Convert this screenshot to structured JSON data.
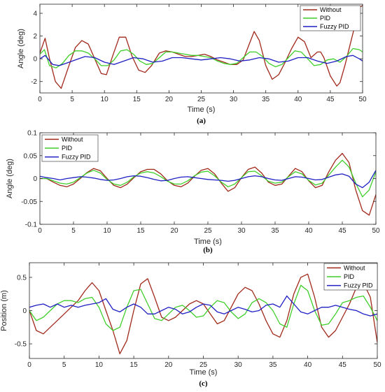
{
  "colors": {
    "without": "#a0291b",
    "pid": "#3fcf2a",
    "fuzzy": "#1f1fc4"
  },
  "chart_data": [
    {
      "type": "line",
      "panel_label": "(a)",
      "xlabel": "Time (s)",
      "ylabel": "Angle (deg)",
      "xlim": [
        0,
        50
      ],
      "ylim": [
        -3,
        4.8
      ],
      "xticks": [
        0,
        5,
        10,
        15,
        20,
        25,
        30,
        35,
        40,
        45,
        50
      ],
      "xtick_labels": [
        "0",
        "5",
        "10",
        "15",
        "20",
        "25",
        "30",
        "35",
        "40",
        "45",
        "50"
      ],
      "yticks": [
        -2,
        0,
        2,
        4
      ],
      "ytick_labels": [
        "-2",
        "0",
        "2",
        "4"
      ],
      "legend_position": "top-right",
      "series": [
        {
          "name": "Without",
          "color_key": "without",
          "x": [
            0,
            0.8,
            1.5,
            2.4,
            3.3,
            4.5,
            5.5,
            6.5,
            7.5,
            8.5,
            9.5,
            10.3,
            11.3,
            12.3,
            13.3,
            14.3,
            15.3,
            16.3,
            17.3,
            18.5,
            19.5,
            20.5,
            21.5,
            22.5,
            23.5,
            24.5,
            25.5,
            26.5,
            27.5,
            28.5,
            29.5,
            30.5,
            31.5,
            32.5,
            33.2,
            34,
            35,
            36,
            37,
            38,
            39,
            40,
            41,
            42,
            43,
            43.5,
            44,
            45,
            46,
            46.5,
            47.3,
            48,
            48.8,
            49.5,
            50
          ],
          "y": [
            0.5,
            1.8,
            0,
            -2,
            -2.6,
            -0.6,
            1,
            1.6,
            1.3,
            0,
            -1.3,
            -1.4,
            0.3,
            1.9,
            1.9,
            0.2,
            -1,
            -1.2,
            -0.6,
            0.5,
            0.7,
            0.6,
            0.4,
            0.2,
            0.2,
            0.3,
            0.4,
            0.2,
            -0.1,
            -0.3,
            -0.5,
            -0.5,
            -0.1,
            1.4,
            2.4,
            1.6,
            -0.6,
            -1.8,
            -1.4,
            -0.3,
            0.9,
            1.9,
            1.5,
            0.1,
            0.6,
            0.6,
            0.1,
            -1.5,
            -2.4,
            -2.1,
            -0.5,
            1.1,
            2.9,
            4.5,
            4.7
          ]
        },
        {
          "name": "PID",
          "color_key": "pid",
          "x": [
            0,
            0.7,
            1.5,
            2.5,
            3.5,
            4.5,
            5.5,
            6.5,
            7.5,
            8.5,
            9.5,
            10.5,
            11.5,
            12.5,
            13.5,
            14.5,
            15.5,
            16.5,
            17.5,
            18.5,
            19.5,
            20.5,
            21.5,
            22.5,
            23.5,
            24.5,
            25.5,
            26.5,
            27.5,
            28.5,
            29.5,
            30.5,
            31.5,
            32.5,
            33.5,
            34.5,
            35.5,
            36.5,
            37.5,
            38.5,
            39.5,
            40.5,
            41.5,
            42.5,
            43.5,
            44.5,
            45.5,
            46.5,
            47.5,
            48.5,
            49.5,
            50
          ],
          "y": [
            0.4,
            0.8,
            -0.6,
            -0.8,
            -0.4,
            0.3,
            0.7,
            0.7,
            0.5,
            0,
            -0.6,
            -0.6,
            -0.1,
            0.7,
            0.8,
            0.4,
            -0.2,
            -0.5,
            -0.4,
            0.1,
            0.6,
            0.6,
            0.5,
            0.4,
            0.3,
            0.3,
            0.2,
            0.1,
            -0.2,
            -0.4,
            -0.5,
            -0.4,
            0.1,
            0.6,
            0.6,
            0.2,
            -0.4,
            -0.7,
            -0.5,
            0.1,
            0.7,
            0.6,
            0,
            -0.6,
            -0.5,
            -0.1,
            0,
            -0.3,
            0.2,
            0.9,
            0.8,
            0.6
          ]
        },
        {
          "name": "Fuzzy PID",
          "color_key": "fuzzy",
          "x": [
            0,
            0.8,
            2,
            3,
            4,
            5.5,
            7,
            8.5,
            10,
            11.5,
            13,
            14.5,
            16,
            17.5,
            19,
            20.5,
            22,
            23.5,
            25,
            26.5,
            28,
            29.5,
            31,
            32.5,
            34,
            35.5,
            37,
            38.5,
            40,
            41.5,
            43,
            44.5,
            46,
            47.5,
            48.5,
            49.5,
            50
          ],
          "y": [
            0,
            0.3,
            -0.5,
            -0.6,
            -0.4,
            -0.1,
            0.2,
            0.1,
            -0.3,
            -0.5,
            -0.2,
            0.1,
            0,
            -0.3,
            -0.2,
            0.1,
            0.1,
            0,
            -0.1,
            0,
            0.1,
            0,
            -0.2,
            -0.1,
            0.1,
            0,
            -0.3,
            -0.2,
            0.1,
            0.1,
            -0.2,
            -0.4,
            -0.2,
            0.2,
            0.3,
            0,
            -0.2
          ]
        }
      ]
    },
    {
      "type": "line",
      "panel_label": "(b)",
      "xlabel": "Time (s)",
      "ylabel": "Angle (deg)",
      "xlim": [
        0,
        50
      ],
      "ylim": [
        -0.1,
        0.1
      ],
      "xticks": [
        0,
        5,
        10,
        15,
        20,
        25,
        30,
        35,
        40,
        45,
        50
      ],
      "xtick_labels": [
        "0",
        "5",
        "10",
        "15",
        "20",
        "25",
        "30",
        "35",
        "40",
        "45",
        "50"
      ],
      "yticks": [
        -0.1,
        -0.05,
        0,
        0.05,
        0.1
      ],
      "ytick_labels": [
        "-0.1",
        "-0.05",
        "0",
        "0.05",
        "0.1"
      ],
      "legend_position": "top-left",
      "series": [
        {
          "name": "Without",
          "color_key": "without",
          "x": [
            0,
            1,
            2,
            3,
            4,
            5,
            6,
            7,
            8,
            9,
            10,
            11,
            12,
            13,
            14,
            15,
            16,
            17,
            18,
            19,
            20,
            21,
            22,
            23,
            24,
            25,
            26,
            27,
            28,
            29,
            30,
            31,
            32,
            33,
            34,
            35,
            36,
            37,
            38,
            39,
            40,
            41,
            42,
            43,
            44,
            45,
            46,
            47,
            48,
            49,
            50
          ],
          "y": [
            0,
            0,
            -0.008,
            -0.015,
            -0.018,
            -0.012,
            0,
            0.013,
            0.022,
            0.017,
            0,
            -0.015,
            -0.02,
            -0.012,
            0.002,
            0.015,
            0.02,
            0.02,
            0.01,
            -0.005,
            -0.015,
            -0.018,
            -0.01,
            0.005,
            0.018,
            0.022,
            0.01,
            -0.01,
            -0.028,
            -0.02,
            0.002,
            0.02,
            0.025,
            0.012,
            -0.008,
            -0.015,
            -0.012,
            0.005,
            0.022,
            0.015,
            -0.005,
            -0.02,
            -0.015,
            0.015,
            0.04,
            0.055,
            0.035,
            -0.025,
            -0.07,
            -0.08,
            -0.035
          ]
        },
        {
          "name": "PID",
          "color_key": "pid",
          "x": [
            0,
            1,
            2,
            3,
            4,
            5,
            6,
            7,
            8,
            9,
            10,
            11,
            12,
            13,
            14,
            15,
            16,
            17,
            18,
            19,
            20,
            21,
            22,
            23,
            24,
            25,
            26,
            27,
            28,
            29,
            30,
            31,
            32,
            33,
            34,
            35,
            36,
            37,
            38,
            39,
            40,
            41,
            42,
            43,
            44,
            45,
            46,
            47,
            48,
            49,
            50
          ],
          "y": [
            0,
            0,
            -0.005,
            -0.01,
            -0.012,
            -0.008,
            0.002,
            0.012,
            0.018,
            0.012,
            -0.002,
            -0.012,
            -0.015,
            -0.008,
            0.004,
            0.012,
            0.015,
            0.012,
            0.004,
            -0.006,
            -0.012,
            -0.012,
            -0.005,
            0.006,
            0.014,
            0.016,
            0.006,
            -0.008,
            -0.018,
            -0.012,
            0.002,
            0.015,
            0.016,
            0.006,
            -0.006,
            -0.01,
            -0.008,
            0.004,
            0.015,
            0.01,
            -0.004,
            -0.014,
            -0.01,
            0.008,
            0.025,
            0.04,
            0.025,
            -0.01,
            -0.04,
            -0.025,
            0.015
          ]
        },
        {
          "name": "Fuzzy PID",
          "color_key": "fuzzy",
          "x": [
            0,
            1,
            2,
            3,
            4,
            5,
            6,
            7,
            8,
            9,
            10,
            11,
            12,
            13,
            14,
            15,
            16,
            17,
            18,
            19,
            20,
            21,
            22,
            23,
            24,
            25,
            26,
            27,
            28,
            29,
            30,
            31,
            32,
            33,
            34,
            35,
            36,
            37,
            38,
            39,
            40,
            41,
            42,
            43,
            44,
            45,
            46,
            47,
            48,
            49,
            50
          ],
          "y": [
            0.005,
            0.002,
            0,
            -0.003,
            0,
            0.002,
            0.004,
            0.003,
            0.001,
            -0.002,
            -0.004,
            -0.003,
            0,
            0.004,
            0.006,
            0.005,
            0.002,
            -0.002,
            -0.005,
            -0.004,
            0,
            0.003,
            0.004,
            0.002,
            0,
            -0.002,
            -0.003,
            -0.004,
            -0.006,
            -0.004,
            0,
            0.004,
            0.006,
            0.004,
            0,
            -0.003,
            -0.004,
            0,
            0.004,
            0.003,
            0,
            -0.003,
            -0.002,
            0.003,
            0.008,
            0.01,
            0.005,
            -0.012,
            -0.02,
            -0.008,
            0.018
          ]
        }
      ]
    },
    {
      "type": "line",
      "panel_label": "(c)",
      "xlabel": "Time (s)",
      "ylabel": "Position (m)",
      "xlim": [
        0,
        50
      ],
      "ylim": [
        -0.72,
        0.72
      ],
      "xticks": [
        0,
        5,
        10,
        15,
        20,
        25,
        30,
        35,
        40,
        45,
        50
      ],
      "xtick_labels": [
        "0",
        "5",
        "10",
        "15",
        "20",
        "25",
        "30",
        "35",
        "40",
        "45",
        "50"
      ],
      "yticks": [
        -0.5,
        0,
        0.5
      ],
      "ytick_labels": [
        "-0.5",
        "0",
        "0.5"
      ],
      "legend_position": "top-right",
      "series": [
        {
          "name": "Without",
          "color_key": "without",
          "x": [
            0,
            1,
            2,
            3,
            4,
            5,
            6,
            7,
            8,
            9,
            10,
            11,
            12,
            13,
            14,
            15,
            16,
            17,
            18,
            19,
            20,
            21,
            22,
            23,
            24,
            25,
            26,
            27,
            28,
            29,
            30,
            31,
            32,
            33,
            34,
            35,
            36,
            37,
            38,
            39,
            40,
            41,
            42,
            43,
            44,
            45,
            46,
            47,
            48,
            49,
            50
          ],
          "y": [
            0,
            -0.3,
            -0.35,
            -0.25,
            -0.15,
            -0.05,
            0.05,
            0.15,
            0.3,
            0.42,
            0.3,
            0,
            -0.3,
            -0.65,
            -0.45,
            0,
            0.4,
            0.48,
            0.2,
            -0.1,
            -0.15,
            -0.1,
            0,
            0.1,
            0.15,
            0.1,
            -0.05,
            -0.2,
            -0.15,
            0.05,
            0.25,
            0.35,
            0.3,
            0.1,
            -0.15,
            -0.35,
            -0.4,
            -0.15,
            0.25,
            0.5,
            0.55,
            0.2,
            -0.25,
            -0.4,
            -0.3,
            -0.1,
            0.1,
            0.35,
            0.42,
            0.2,
            -0.48
          ]
        },
        {
          "name": "PID",
          "color_key": "pid",
          "x": [
            0,
            1,
            2,
            3,
            4,
            5,
            6,
            7,
            8,
            9,
            10,
            11,
            12,
            13,
            14,
            15,
            16,
            17,
            18,
            19,
            20,
            21,
            22,
            23,
            24,
            25,
            26,
            27,
            28,
            29,
            30,
            31,
            32,
            33,
            34,
            35,
            36,
            37,
            38,
            39,
            40,
            41,
            42,
            43,
            44,
            45,
            46,
            47,
            48,
            49,
            50
          ],
          "y": [
            0,
            -0.15,
            -0.1,
            0,
            0.1,
            0.15,
            0.15,
            0.12,
            0.18,
            0.2,
            0.05,
            -0.2,
            -0.3,
            -0.25,
            0.05,
            0.3,
            0.32,
            0.1,
            -0.12,
            -0.15,
            -0.05,
            0.05,
            0.08,
            0,
            -0.1,
            -0.08,
            0.05,
            0.15,
            0.12,
            -0.02,
            -0.12,
            -0.05,
            0.12,
            0.18,
            0.12,
            0,
            -0.2,
            -0.25,
            0.1,
            0.38,
            0.3,
            0,
            -0.22,
            -0.2,
            -0.05,
            0.12,
            0.15,
            0.2,
            0.22,
            0.05,
            -0.15
          ]
        },
        {
          "name": "Fuzzy PID",
          "color_key": "fuzzy",
          "x": [
            0,
            1,
            2,
            3,
            4,
            5,
            6,
            7,
            8,
            9,
            10,
            11,
            12,
            13,
            14,
            15,
            16,
            17,
            18,
            19,
            20,
            21,
            22,
            23,
            24,
            25,
            26,
            27,
            28,
            29,
            30,
            31,
            32,
            33,
            34,
            35,
            36,
            37,
            38,
            39,
            40,
            41,
            42,
            43,
            44,
            45,
            46,
            47,
            48,
            49,
            50
          ],
          "y": [
            0.05,
            0.08,
            0.1,
            0.05,
            0.1,
            0.05,
            0.08,
            0.05,
            0.08,
            0.1,
            0.12,
            0.18,
            0.02,
            -0.02,
            0.05,
            0.1,
            0.05,
            -0.05,
            -0.05,
            0,
            0.05,
            0.02,
            -0.05,
            -0.02,
            0.05,
            0.1,
            0.08,
            -0.02,
            -0.05,
            0,
            0.05,
            0.02,
            -0.02,
            0,
            0.08,
            0.1,
            0.05,
            0.22,
            0.1,
            -0.02,
            -0.05,
            0,
            0.05,
            0.05,
            0.08,
            0.05,
            0.02,
            0,
            -0.05,
            -0.08,
            -0.05
          ]
        }
      ]
    }
  ]
}
